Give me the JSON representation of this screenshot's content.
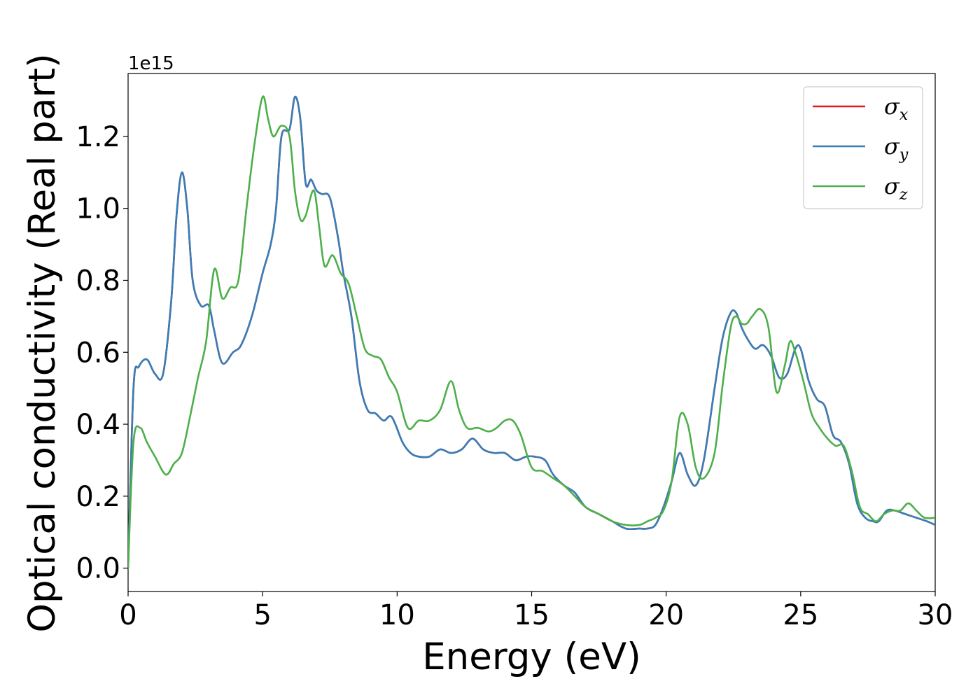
{
  "chart_data": {
    "type": "line",
    "xlabel": "Energy (eV)",
    "ylabel": "Optical conductivity (Real part)",
    "y_offset_text": "1e15",
    "xlim": [
      0,
      30
    ],
    "ylim": [
      -0.065,
      1.375
    ],
    "xticks": [
      0,
      5,
      10,
      15,
      20,
      25,
      30
    ],
    "xtick_labels": [
      "0",
      "5",
      "10",
      "15",
      "20",
      "25",
      "30"
    ],
    "yticks": [
      0.0,
      0.2,
      0.4,
      0.6,
      0.8,
      1.0,
      1.2
    ],
    "ytick_labels": [
      "0.0",
      "0.2",
      "0.4",
      "0.6",
      "0.8",
      "1.0",
      "1.2"
    ],
    "grid": false,
    "legend_position": "upper-right",
    "series": [
      {
        "name": "σx",
        "symbol": "σ",
        "subscript": "x",
        "color": "#e41a1c",
        "x": [
          0,
          0.2,
          0.4,
          0.7,
          1.0,
          1.3,
          1.6,
          1.8,
          2.0,
          2.2,
          2.4,
          2.7,
          3.0,
          3.2,
          3.5,
          3.9,
          4.2,
          4.6,
          5.0,
          5.3,
          5.5,
          5.7,
          6.0,
          6.2,
          6.4,
          6.6,
          6.8,
          7.0,
          7.2,
          7.5,
          7.8,
          8.0,
          8.3,
          8.6,
          8.9,
          9.2,
          9.5,
          9.8,
          10.2,
          10.5,
          10.8,
          11.2,
          11.6,
          12.0,
          12.4,
          12.8,
          13.2,
          13.6,
          14.0,
          14.4,
          14.8,
          15.1,
          15.5,
          15.8,
          16.2,
          16.6,
          17.0,
          17.5,
          18.0,
          18.5,
          19.0,
          19.3,
          19.6,
          19.9,
          20.2,
          20.5,
          20.8,
          21.1,
          21.4,
          21.8,
          22.1,
          22.4,
          22.6,
          22.8,
          23.0,
          23.3,
          23.6,
          23.9,
          24.2,
          24.5,
          24.8,
          25.0,
          25.3,
          25.6,
          25.9,
          26.2,
          26.5,
          26.8,
          27.1,
          27.4,
          27.7,
          27.9,
          28.2,
          28.5,
          28.9,
          29.3,
          29.7,
          30.0
        ],
        "y": [
          0.0,
          0.5,
          0.56,
          0.58,
          0.54,
          0.54,
          0.74,
          0.98,
          1.1,
          1.0,
          0.8,
          0.73,
          0.73,
          0.66,
          0.57,
          0.6,
          0.62,
          0.7,
          0.82,
          0.9,
          1.0,
          1.2,
          1.22,
          1.31,
          1.25,
          1.07,
          1.08,
          1.05,
          1.04,
          1.03,
          0.92,
          0.82,
          0.7,
          0.52,
          0.44,
          0.43,
          0.41,
          0.42,
          0.35,
          0.32,
          0.31,
          0.31,
          0.33,
          0.32,
          0.33,
          0.36,
          0.33,
          0.32,
          0.32,
          0.3,
          0.31,
          0.31,
          0.3,
          0.26,
          0.23,
          0.21,
          0.17,
          0.15,
          0.13,
          0.11,
          0.11,
          0.11,
          0.12,
          0.17,
          0.24,
          0.32,
          0.26,
          0.23,
          0.3,
          0.5,
          0.64,
          0.71,
          0.71,
          0.67,
          0.64,
          0.61,
          0.62,
          0.59,
          0.53,
          0.54,
          0.61,
          0.61,
          0.52,
          0.47,
          0.45,
          0.37,
          0.35,
          0.29,
          0.18,
          0.14,
          0.13,
          0.13,
          0.16,
          0.16,
          0.15,
          0.14,
          0.13,
          0.12
        ]
      },
      {
        "name": "σy",
        "symbol": "σ",
        "subscript": "y",
        "color": "#377eb8",
        "x": [
          0,
          0.2,
          0.4,
          0.7,
          1.0,
          1.3,
          1.6,
          1.8,
          2.0,
          2.2,
          2.4,
          2.7,
          3.0,
          3.2,
          3.5,
          3.9,
          4.2,
          4.6,
          5.0,
          5.3,
          5.5,
          5.7,
          6.0,
          6.2,
          6.4,
          6.6,
          6.8,
          7.0,
          7.2,
          7.5,
          7.8,
          8.0,
          8.3,
          8.6,
          8.9,
          9.2,
          9.5,
          9.8,
          10.2,
          10.5,
          10.8,
          11.2,
          11.6,
          12.0,
          12.4,
          12.8,
          13.2,
          13.6,
          14.0,
          14.4,
          14.8,
          15.1,
          15.5,
          15.8,
          16.2,
          16.6,
          17.0,
          17.5,
          18.0,
          18.5,
          19.0,
          19.3,
          19.6,
          19.9,
          20.2,
          20.5,
          20.8,
          21.1,
          21.4,
          21.8,
          22.1,
          22.4,
          22.6,
          22.8,
          23.0,
          23.3,
          23.6,
          23.9,
          24.2,
          24.5,
          24.8,
          25.0,
          25.3,
          25.6,
          25.9,
          26.2,
          26.5,
          26.8,
          27.1,
          27.4,
          27.7,
          27.9,
          28.2,
          28.5,
          28.9,
          29.3,
          29.7,
          30.0
        ],
        "y": [
          0.0,
          0.5,
          0.56,
          0.58,
          0.54,
          0.54,
          0.74,
          0.98,
          1.1,
          1.0,
          0.8,
          0.73,
          0.73,
          0.66,
          0.57,
          0.6,
          0.62,
          0.7,
          0.82,
          0.9,
          1.0,
          1.2,
          1.22,
          1.31,
          1.25,
          1.07,
          1.08,
          1.05,
          1.04,
          1.03,
          0.92,
          0.82,
          0.7,
          0.52,
          0.44,
          0.43,
          0.41,
          0.42,
          0.35,
          0.32,
          0.31,
          0.31,
          0.33,
          0.32,
          0.33,
          0.36,
          0.33,
          0.32,
          0.32,
          0.3,
          0.31,
          0.31,
          0.3,
          0.26,
          0.23,
          0.21,
          0.17,
          0.15,
          0.13,
          0.11,
          0.11,
          0.11,
          0.12,
          0.17,
          0.24,
          0.32,
          0.26,
          0.23,
          0.3,
          0.5,
          0.64,
          0.71,
          0.71,
          0.67,
          0.64,
          0.61,
          0.62,
          0.59,
          0.53,
          0.54,
          0.61,
          0.61,
          0.52,
          0.47,
          0.45,
          0.37,
          0.35,
          0.29,
          0.18,
          0.14,
          0.13,
          0.13,
          0.16,
          0.16,
          0.15,
          0.14,
          0.13,
          0.12
        ]
      },
      {
        "name": "σz",
        "symbol": "σ",
        "subscript": "z",
        "color": "#4daf4a",
        "x": [
          0,
          0.2,
          0.45,
          0.7,
          1.0,
          1.4,
          1.7,
          2.0,
          2.3,
          2.6,
          2.9,
          3.2,
          3.5,
          3.8,
          4.1,
          4.4,
          4.7,
          5.0,
          5.2,
          5.4,
          5.7,
          6.0,
          6.2,
          6.4,
          6.6,
          6.9,
          7.1,
          7.3,
          7.6,
          7.9,
          8.2,
          8.5,
          8.8,
          9.1,
          9.4,
          9.7,
          10.0,
          10.4,
          10.8,
          11.2,
          11.6,
          12.0,
          12.3,
          12.6,
          13.0,
          13.4,
          13.7,
          14.0,
          14.3,
          14.6,
          15.0,
          15.4,
          15.8,
          16.2,
          16.6,
          17.0,
          17.5,
          18.0,
          18.5,
          19.0,
          19.3,
          19.6,
          19.9,
          20.2,
          20.5,
          20.8,
          21.1,
          21.4,
          21.8,
          22.1,
          22.4,
          22.6,
          22.8,
          23.0,
          23.2,
          23.5,
          23.8,
          24.1,
          24.4,
          24.6,
          24.8,
          25.1,
          25.4,
          25.7,
          26.0,
          26.3,
          26.6,
          26.9,
          27.2,
          27.5,
          27.8,
          28.1,
          28.4,
          28.7,
          29.0,
          29.3,
          29.6,
          30.0
        ],
        "y": [
          0.0,
          0.35,
          0.39,
          0.35,
          0.31,
          0.26,
          0.29,
          0.32,
          0.42,
          0.53,
          0.63,
          0.83,
          0.75,
          0.78,
          0.8,
          1.0,
          1.18,
          1.31,
          1.25,
          1.2,
          1.23,
          1.2,
          1.05,
          0.97,
          0.98,
          1.05,
          0.95,
          0.84,
          0.87,
          0.82,
          0.79,
          0.7,
          0.61,
          0.59,
          0.58,
          0.53,
          0.49,
          0.39,
          0.41,
          0.41,
          0.44,
          0.52,
          0.44,
          0.39,
          0.39,
          0.38,
          0.39,
          0.41,
          0.41,
          0.37,
          0.28,
          0.27,
          0.25,
          0.23,
          0.2,
          0.17,
          0.15,
          0.13,
          0.12,
          0.12,
          0.13,
          0.14,
          0.16,
          0.24,
          0.42,
          0.4,
          0.28,
          0.25,
          0.32,
          0.51,
          0.67,
          0.7,
          0.68,
          0.68,
          0.7,
          0.72,
          0.67,
          0.49,
          0.56,
          0.63,
          0.6,
          0.52,
          0.43,
          0.39,
          0.36,
          0.34,
          0.34,
          0.27,
          0.17,
          0.15,
          0.13,
          0.15,
          0.16,
          0.16,
          0.18,
          0.16,
          0.14,
          0.14
        ]
      }
    ]
  }
}
